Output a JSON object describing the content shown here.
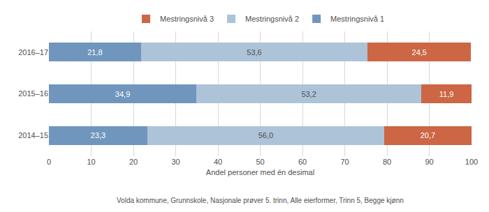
{
  "chart_data": {
    "type": "bar",
    "orientation": "horizontal",
    "stacked": true,
    "categories": [
      "2016–17",
      "2015–16",
      "2014–15"
    ],
    "series": [
      {
        "name": "Mestringsnivå 1",
        "color": "#7096be",
        "values": [
          21.8,
          34.9,
          23.3
        ],
        "value_labels": [
          "21,8",
          "34,9",
          "23,3"
        ]
      },
      {
        "name": "Mestringsnivå 2",
        "color": "#adc3d8",
        "values": [
          53.6,
          53.2,
          56.0
        ],
        "value_labels": [
          "53,6",
          "53,2",
          "56,0"
        ]
      },
      {
        "name": "Mestringsnivå 3",
        "color": "#cc6644",
        "values": [
          24.5,
          11.9,
          20.7
        ],
        "value_labels": [
          "24,5",
          "11,9",
          "20,7"
        ]
      }
    ],
    "xlabel": "Andel personer med én desimal",
    "xlim": [
      0,
      100
    ],
    "xticks": [
      0,
      10,
      20,
      30,
      40,
      50,
      60,
      70,
      80,
      90,
      100
    ],
    "grid": true,
    "legend": "top",
    "data_labels": true,
    "annotations": [
      "Volda kommune, Grunnskole, Nasjonale prøver 5. trinn, Alle eierformer, Trinn 5, Begge kjønn"
    ]
  }
}
